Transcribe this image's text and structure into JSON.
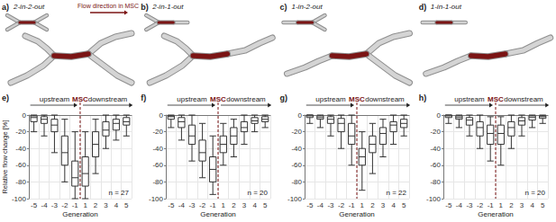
{
  "panels": [
    {
      "label": "a)",
      "title": "2-in-2-out"
    },
    {
      "label": "b)",
      "title": "2-in-1-out"
    },
    {
      "label": "c)",
      "title": "1-in-2-out"
    },
    {
      "label": "d)",
      "title": "1-in-1-out"
    }
  ],
  "flow_label": "Flow direction in MSC",
  "chart_data": [
    {
      "type": "boxplot",
      "title": "e)",
      "color": "#333333",
      "grid": true,
      "ylabel": "Relative flow change [%]",
      "xlabel": "Generation",
      "categories": [
        "-5",
        "-4",
        "-3",
        "-2",
        "-1",
        "1",
        "2",
        "3",
        "4",
        "5"
      ],
      "values": [
        [
          -20,
          -8,
          -3,
          -1,
          0
        ],
        [
          -25,
          -10,
          -5,
          -2,
          0
        ],
        [
          -45,
          -20,
          -12,
          -5,
          0
        ],
        [
          -80,
          -60,
          -45,
          -25,
          -5
        ],
        [
          -100,
          -85,
          -75,
          -55,
          -20
        ],
        [
          -100,
          -85,
          -70,
          -50,
          -20
        ],
        [
          -70,
          -50,
          -35,
          -20,
          -5
        ],
        [
          -40,
          -25,
          -18,
          -8,
          0
        ],
        [
          -30,
          -18,
          -10,
          -5,
          0
        ],
        [
          -25,
          -12,
          -8,
          -3,
          0
        ]
      ],
      "ylim": [
        -100,
        0
      ],
      "yticks": [
        -100,
        -80,
        -60,
        -40,
        -20,
        0
      ],
      "annotations": {
        "upstream": "upstream",
        "divider": "MSC",
        "downstream": "downstream",
        "n": "n = 27"
      }
    },
    {
      "type": "boxplot",
      "title": "f)",
      "color": "#333333",
      "grid": true,
      "xlabel": "Generation",
      "categories": [
        "-5",
        "-4",
        "-3",
        "-2",
        "-1",
        "1",
        "2",
        "3",
        "4",
        "5"
      ],
      "values": [
        [
          -15,
          -5,
          -2,
          -1,
          0
        ],
        [
          -30,
          -15,
          -8,
          -3,
          0
        ],
        [
          -55,
          -35,
          -25,
          -12,
          0
        ],
        [
          -75,
          -55,
          -45,
          -30,
          -10
        ],
        [
          -95,
          -80,
          -65,
          -50,
          -25
        ],
        [
          -60,
          -45,
          -35,
          -25,
          -10
        ],
        [
          -50,
          -35,
          -25,
          -15,
          -5
        ],
        [
          -35,
          -20,
          -15,
          -8,
          0
        ],
        [
          -20,
          -10,
          -7,
          -3,
          0
        ],
        [
          -15,
          -8,
          -5,
          -2,
          0
        ]
      ],
      "ylim": [
        -100,
        0
      ],
      "yticks": [
        -100,
        -80,
        -60,
        -40,
        -20,
        0
      ],
      "annotations": {
        "upstream": "upstream",
        "divider": "MSC",
        "downstream": "downstream",
        "n": "n = 20"
      }
    },
    {
      "type": "boxplot",
      "title": "g)",
      "color": "#333333",
      "grid": true,
      "xlabel": "Generation",
      "categories": [
        "-5",
        "-4",
        "-3",
        "-2",
        "-1",
        "1",
        "2",
        "3",
        "4",
        "5"
      ],
      "values": [
        [
          -10,
          -3,
          -1,
          0,
          0
        ],
        [
          -15,
          -5,
          -3,
          -1,
          0
        ],
        [
          -25,
          -10,
          -5,
          -2,
          0
        ],
        [
          -40,
          -20,
          -10,
          -4,
          0
        ],
        [
          -60,
          -35,
          -25,
          -10,
          0
        ],
        [
          -90,
          -60,
          -50,
          -40,
          -20
        ],
        [
          -70,
          -45,
          -35,
          -25,
          -10
        ],
        [
          -50,
          -35,
          -22,
          -15,
          -5
        ],
        [
          -35,
          -20,
          -12,
          -8,
          0
        ],
        [
          -25,
          -15,
          -10,
          -5,
          0
        ]
      ],
      "ylim": [
        -100,
        0
      ],
      "yticks": [
        -100,
        -80,
        -60,
        -40,
        -20,
        0
      ],
      "annotations": {
        "upstream": "upstream",
        "divider": "MSC",
        "downstream": "downstream",
        "n": "n = 22"
      }
    },
    {
      "type": "boxplot",
      "title": "h)",
      "color": "#333333",
      "grid": true,
      "xlabel": "Generation",
      "categories": [
        "-5",
        "-4",
        "-3",
        "-2",
        "-1",
        "1",
        "2",
        "3",
        "4",
        "5"
      ],
      "values": [
        [
          -10,
          -3,
          -1,
          0,
          0
        ],
        [
          -15,
          -5,
          -3,
          -1,
          0
        ],
        [
          -25,
          -12,
          -6,
          -3,
          0
        ],
        [
          -40,
          -25,
          -15,
          -8,
          0
        ],
        [
          -55,
          -35,
          -22,
          -12,
          -2
        ],
        [
          -60,
          -35,
          -22,
          -12,
          -2
        ],
        [
          -40,
          -25,
          -15,
          -8,
          0
        ],
        [
          -25,
          -12,
          -7,
          -3,
          0
        ],
        [
          -15,
          -6,
          -3,
          -1,
          0
        ],
        [
          -10,
          -4,
          -2,
          -1,
          0
        ]
      ],
      "ylim": [
        -100,
        0
      ],
      "yticks": [
        -100,
        -80,
        -60,
        -40,
        -20,
        0
      ],
      "annotations": {
        "upstream": "upstream",
        "divider": "MSC",
        "downstream": "downstream",
        "n": "n = 20"
      }
    }
  ]
}
